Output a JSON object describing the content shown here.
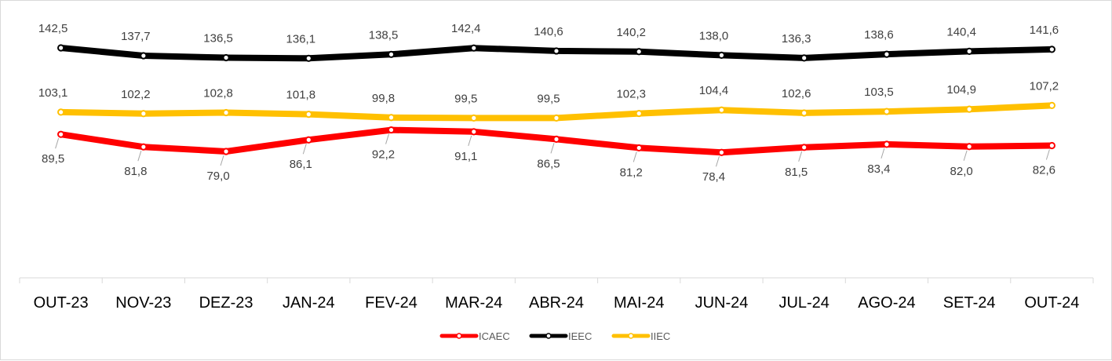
{
  "chart_data": {
    "type": "line",
    "categories": [
      "OUT-23",
      "NOV-23",
      "DEZ-23",
      "JAN-24",
      "FEV-24",
      "MAR-24",
      "ABR-24",
      "MAI-24",
      "JUN-24",
      "JUL-24",
      "AGO-24",
      "SET-24",
      "OUT-24"
    ],
    "series": [
      {
        "name": "ICAEC",
        "color": "#ff0000",
        "values": [
          89.5,
          81.8,
          79.0,
          86.1,
          92.2,
          91.1,
          86.5,
          81.2,
          78.4,
          81.5,
          83.4,
          82.0,
          82.6
        ],
        "labels": [
          "89,5",
          "81,8",
          "79,0",
          "86,1",
          "92,2",
          "91,1",
          "86,5",
          "81,2",
          "78,4",
          "81,5",
          "83,4",
          "82,0",
          "82,6"
        ]
      },
      {
        "name": "IEEC",
        "color": "#000000",
        "values": [
          142.5,
          137.7,
          136.5,
          136.1,
          138.5,
          142.4,
          140.6,
          140.2,
          138.0,
          136.3,
          138.6,
          140.4,
          141.6
        ],
        "labels": [
          "142,5",
          "137,7",
          "136,5",
          "136,1",
          "138,5",
          "142,4",
          "140,6",
          "140,2",
          "138,0",
          "136,3",
          "138,6",
          "140,4",
          "141,6"
        ]
      },
      {
        "name": "IIEC",
        "color": "#ffc000",
        "values": [
          103.1,
          102.2,
          102.8,
          101.8,
          99.8,
          99.5,
          99.5,
          102.3,
          104.4,
          102.6,
          103.5,
          104.9,
          107.2
        ],
        "labels": [
          "103,1",
          "102,2",
          "102,8",
          "101,8",
          "99,8",
          "99,5",
          "99,5",
          "102,3",
          "104,4",
          "102,6",
          "103,5",
          "104,9",
          "107,2"
        ]
      }
    ],
    "grid": false,
    "legend": "bottom-center"
  }
}
